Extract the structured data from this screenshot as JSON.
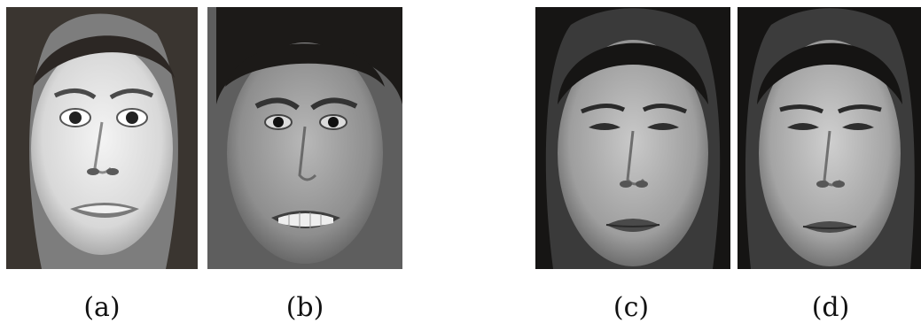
{
  "figure": {
    "panels": [
      {
        "id": "a",
        "caption": "(a)",
        "expression": "fear",
        "subject": "female-light-hair"
      },
      {
        "id": "b",
        "caption": "(b)",
        "expression": "disgust",
        "subject": "female-dark-hair"
      },
      {
        "id": "c",
        "caption": "(c)",
        "expression": "sad",
        "subject": "female-black-hair"
      },
      {
        "id": "d",
        "caption": "(d)",
        "expression": "sad",
        "subject": "female-black-hair"
      }
    ],
    "colors": {
      "background": "#ffffff",
      "caption_text": "#111111"
    }
  }
}
